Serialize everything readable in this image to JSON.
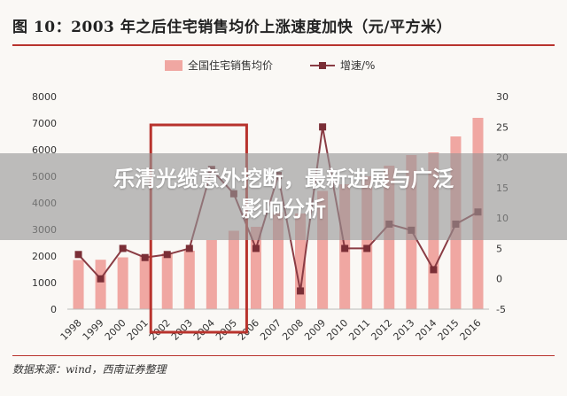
{
  "page_title": "图 10：2003 年之后住宅销售均价上涨速度加快（元/平方米）",
  "source_text": "数据来源：wind，西南证券整理",
  "overlay_caption_line1": "乐清光缆意外挖断，最新进展与广泛",
  "overlay_caption_line2": "影响分析",
  "colors": {
    "bar": "#f0a7a2",
    "line": "#8a3c44",
    "marker": "#7a2e36",
    "highlight_box": "#b8332d",
    "title_rule": "#b8332d"
  },
  "chart_data": {
    "type": "bar",
    "categories": [
      "1998",
      "1999",
      "2000",
      "2001",
      "2002",
      "2003",
      "2004",
      "2005",
      "2006",
      "2007",
      "2008",
      "2009",
      "2010",
      "2011",
      "2012",
      "2013",
      "2014",
      "2015",
      "2016"
    ],
    "series": [
      {
        "name": "全国住宅销售均价",
        "axis": "left",
        "kind": "bar",
        "values": [
          1850,
          1860,
          1950,
          2020,
          2100,
          2200,
          2600,
          2950,
          3100,
          3650,
          3600,
          4450,
          4700,
          5000,
          5400,
          5800,
          5900,
          6500,
          7200
        ]
      },
      {
        "name": "增速/%",
        "axis": "right",
        "kind": "line",
        "values": [
          4,
          0,
          5,
          3.5,
          4,
          5,
          18,
          14,
          5,
          17,
          -2,
          25,
          5,
          5,
          9,
          8,
          1.5,
          9,
          11
        ]
      }
    ],
    "y_left": {
      "min": 0,
      "max": 8000,
      "step": 1000,
      "ticks": [
        "0",
        "1000",
        "2000",
        "3000",
        "4000",
        "5000",
        "6000",
        "7000",
        "8000"
      ]
    },
    "y_right": {
      "min": -5,
      "max": 30,
      "step": 5,
      "ticks": [
        "-5",
        "0",
        "5",
        "10",
        "15",
        "20",
        "25",
        "30"
      ]
    },
    "highlight_range": [
      "2002",
      "2005"
    ],
    "legend_position": "top-center",
    "grid": false
  }
}
